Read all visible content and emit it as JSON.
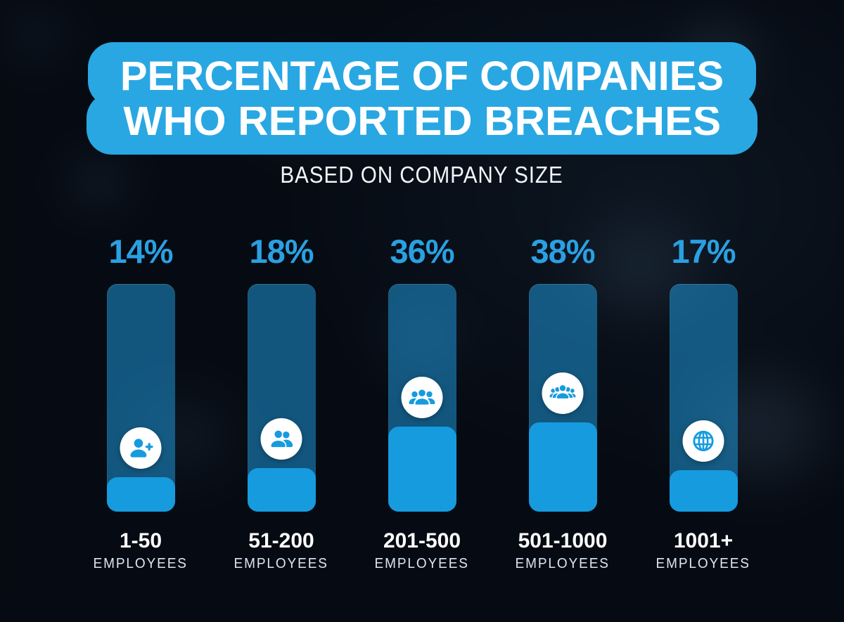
{
  "title": {
    "line1": "PERCENTAGE OF COMPANIES",
    "line2": "WHO REPORTED BREACHES"
  },
  "subtitle": "BASED ON COMPANY SIZE",
  "chart_data": {
    "type": "bar",
    "title": "PERCENTAGE OF COMPANIES WHO REPORTED BREACHES",
    "subtitle": "BASED ON COMPANY SIZE",
    "categories": [
      "1-50",
      "51-200",
      "201-500",
      "501-1000",
      "1001+"
    ],
    "category_sublabel": "EMPLOYEES",
    "values": [
      14,
      18,
      36,
      38,
      17
    ],
    "value_labels": [
      "14%",
      "18%",
      "36%",
      "38%",
      "17%"
    ],
    "icons": [
      "person-add",
      "two-people",
      "group",
      "crowd",
      "globe"
    ],
    "ylim": [
      0,
      100
    ],
    "grid": false,
    "legend": "none",
    "orientation": "vertical"
  },
  "colors": {
    "background": "#060b13",
    "accent_blue": "#29a7e2",
    "bar_fill_blue": "#169bdf",
    "bar_track_blue": "#15597f",
    "value_label_blue": "#2aa0e2",
    "icon_circle_bg": "#ffffff",
    "text_white": "#ffffff"
  }
}
